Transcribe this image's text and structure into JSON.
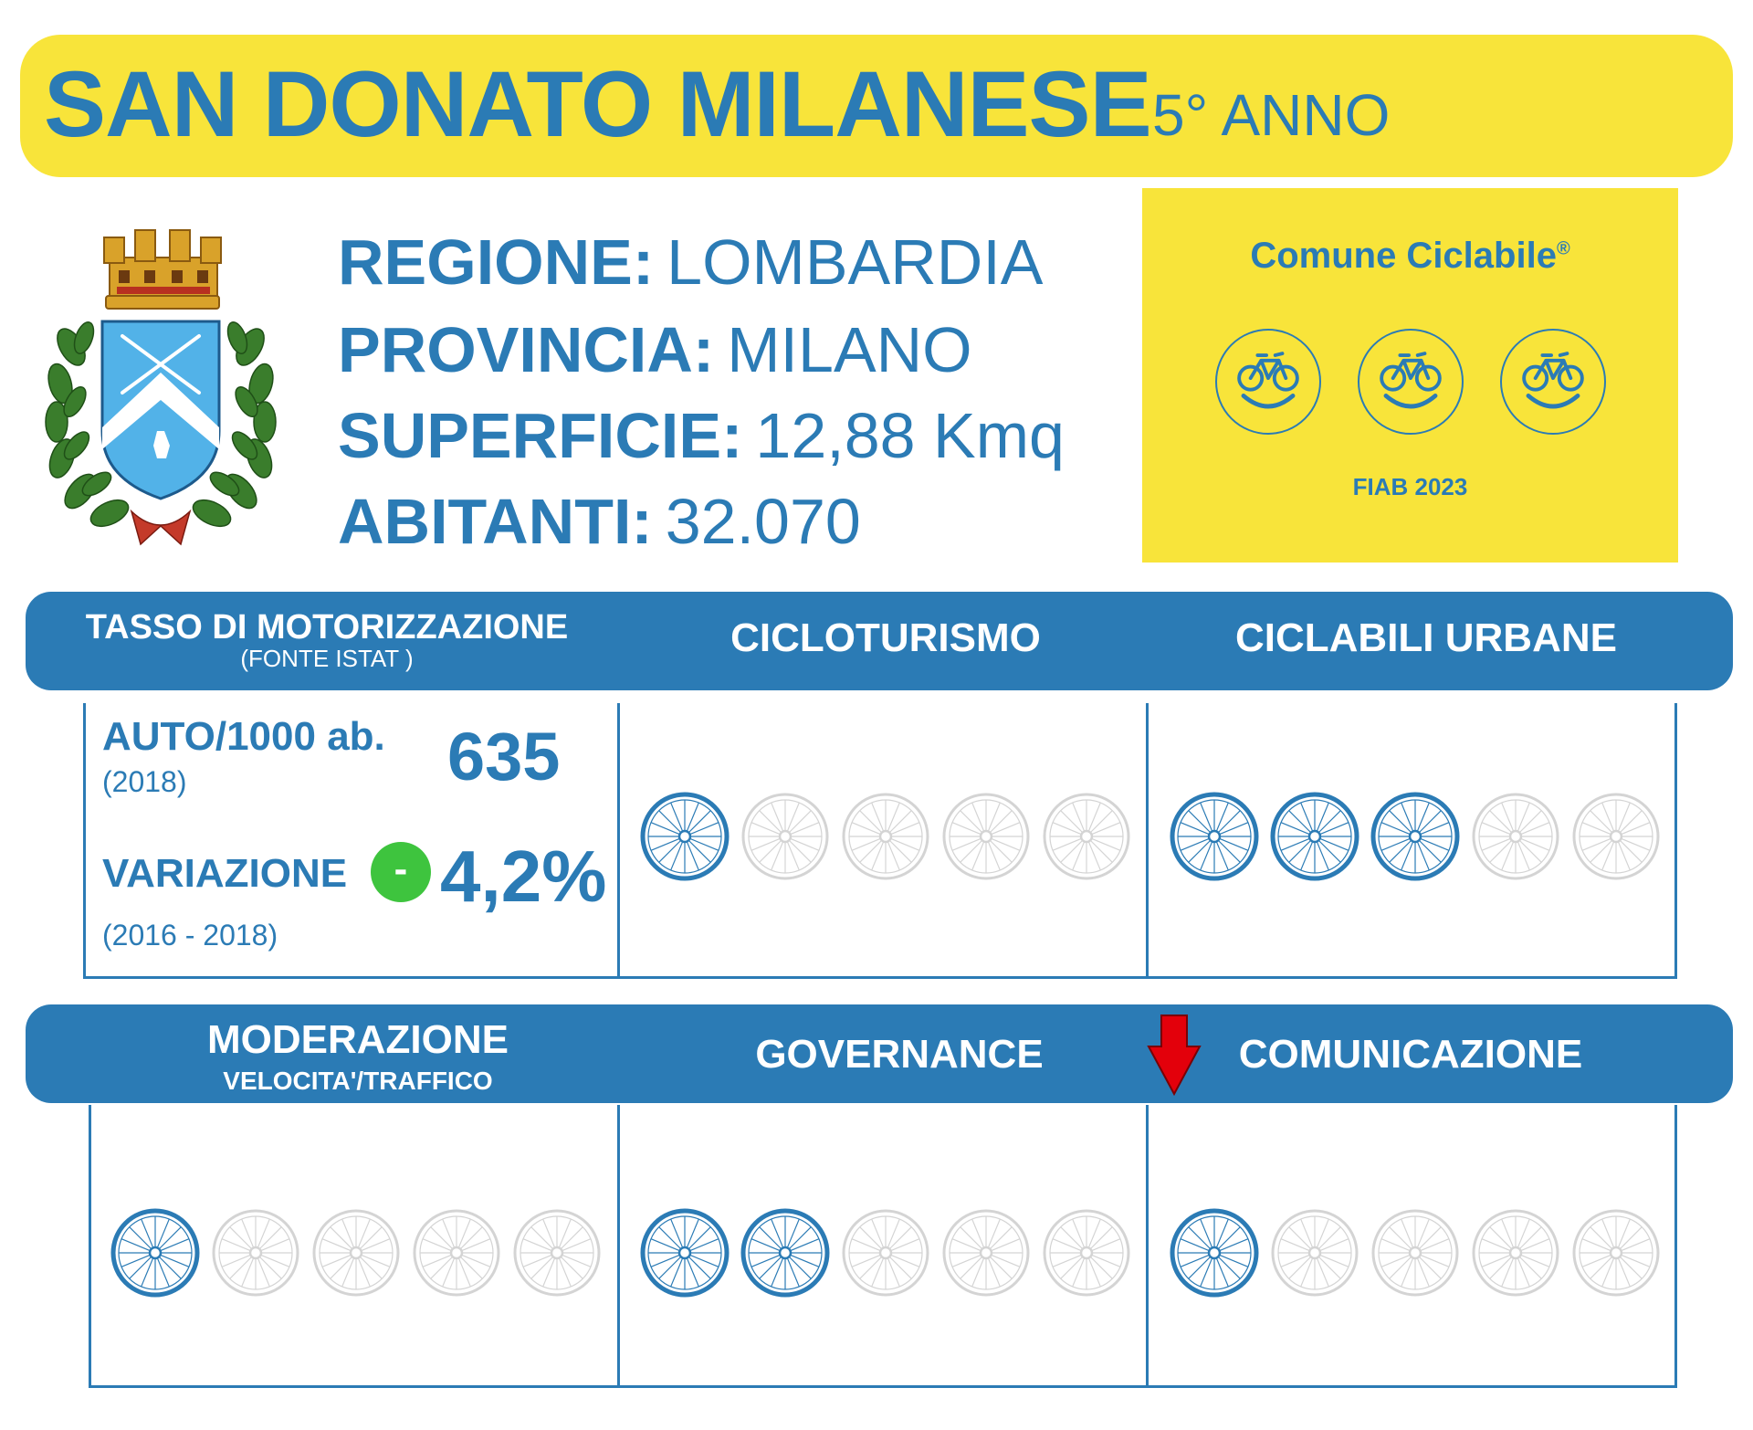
{
  "header": {
    "city": "SAN DONATO MILANESE",
    "year_label": "5° ANNO"
  },
  "info": [
    {
      "label": "REGIONE:",
      "value": "LOMBARDIA"
    },
    {
      "label": "PROVINCIA:",
      "value": "MILANO"
    },
    {
      "label": "SUPERFICIE:",
      "value": "12,88 Kmq"
    },
    {
      "label": "ABITANTI:",
      "value": "32.070"
    }
  ],
  "badge": {
    "title": "Comune Ciclabile",
    "registered": "®",
    "footer": "FIAB 2023",
    "smiles": 3
  },
  "section1": {
    "motorizzazione_title": "TASSO DI MOTORIZZAZIONE",
    "motorizzazione_source": "(FONTE ISTAT )",
    "cicloturismo_title": "CICLOTURISMO",
    "ciclabili_title": "CICLABILI URBANE"
  },
  "motorizzazione": {
    "auto_label": "AUTO/1000 ab.",
    "auto_year": "(2018)",
    "auto_value": "635",
    "variazione_label": "VARIAZIONE",
    "variazione_sign": "-",
    "variazione_value": "4,2%",
    "variazione_years": "(2016 - 2018)"
  },
  "section2": {
    "moderazione_title": "MODERAZIONE",
    "moderazione_sub": "VELOCITA'/TRAFFICO",
    "governance_title": "GOVERNANCE",
    "comunicazione_title": "COMUNICAZIONE"
  },
  "ratings": {
    "max": 5,
    "cicloturismo": 1,
    "ciclabili_urbane": 3,
    "moderazione": 1,
    "governance": 2,
    "comunicazione": 1,
    "comunicazione_trend": "down"
  },
  "colors": {
    "blue": "#2b7bb5",
    "yellow": "#f8e43a",
    "grey": "#d4d4d4",
    "green": "#3ec43e",
    "red": "#e3000b"
  }
}
